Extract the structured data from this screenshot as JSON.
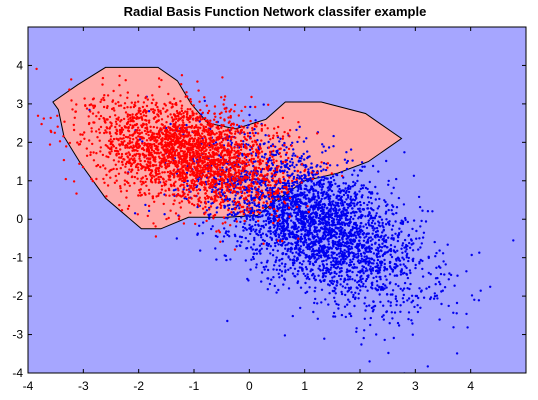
{
  "chart_data": {
    "type": "scatter",
    "title": "Radial Basis Function Network classifer example",
    "xlabel": "",
    "ylabel": "",
    "xlim": [
      -4,
      5
    ],
    "ylim": [
      -4,
      5
    ],
    "x_ticks": [
      "-4",
      "-3",
      "-2",
      "-1",
      "0",
      "1",
      "2",
      "3",
      "4"
    ],
    "y_ticks": [
      "-4",
      "-3",
      "-2",
      "-1",
      "0",
      "1",
      "2",
      "3",
      "4"
    ],
    "grid": false,
    "legend": "none",
    "colors": {
      "background_region": "#a6a6ff",
      "decision_region": "#ffaaaa",
      "boundary": "#000000",
      "class_red": "#ff0000",
      "class_blue": "#0000ee"
    },
    "decision_region": [
      [
        -3.1,
        3.5
      ],
      [
        -2.6,
        3.95
      ],
      [
        -1.65,
        3.95
      ],
      [
        -1.3,
        3.6
      ],
      [
        -1.05,
        3.0
      ],
      [
        -0.75,
        2.5
      ],
      [
        -0.25,
        2.35
      ],
      [
        0.3,
        2.6
      ],
      [
        0.65,
        3.05
      ],
      [
        1.3,
        3.05
      ],
      [
        2.1,
        2.75
      ],
      [
        2.75,
        2.1
      ],
      [
        2.15,
        1.5
      ],
      [
        1.6,
        1.2
      ],
      [
        1.0,
        1.0
      ],
      [
        0.45,
        0.45
      ],
      [
        0.15,
        0.1
      ],
      [
        -0.4,
        0.05
      ],
      [
        -1.1,
        0.05
      ],
      [
        -1.6,
        -0.25
      ],
      [
        -1.95,
        -0.25
      ],
      [
        -2.6,
        0.55
      ],
      [
        -3.05,
        1.45
      ],
      [
        -3.35,
        2.15
      ],
      [
        -3.45,
        2.85
      ],
      [
        -3.55,
        3.05
      ]
    ],
    "series": [
      {
        "color": "#ff0000",
        "cluster": {
          "mean": [
            -1.1,
            1.7
          ],
          "sd": [
            0.85,
            0.7
          ],
          "corr": -0.35,
          "count": 2600
        }
      },
      {
        "color": "#0000ee",
        "cluster": {
          "mean": [
            1.15,
            -0.1
          ],
          "sd": [
            1.0,
            1.05
          ],
          "corr": -0.6,
          "count": 3400
        }
      }
    ]
  }
}
